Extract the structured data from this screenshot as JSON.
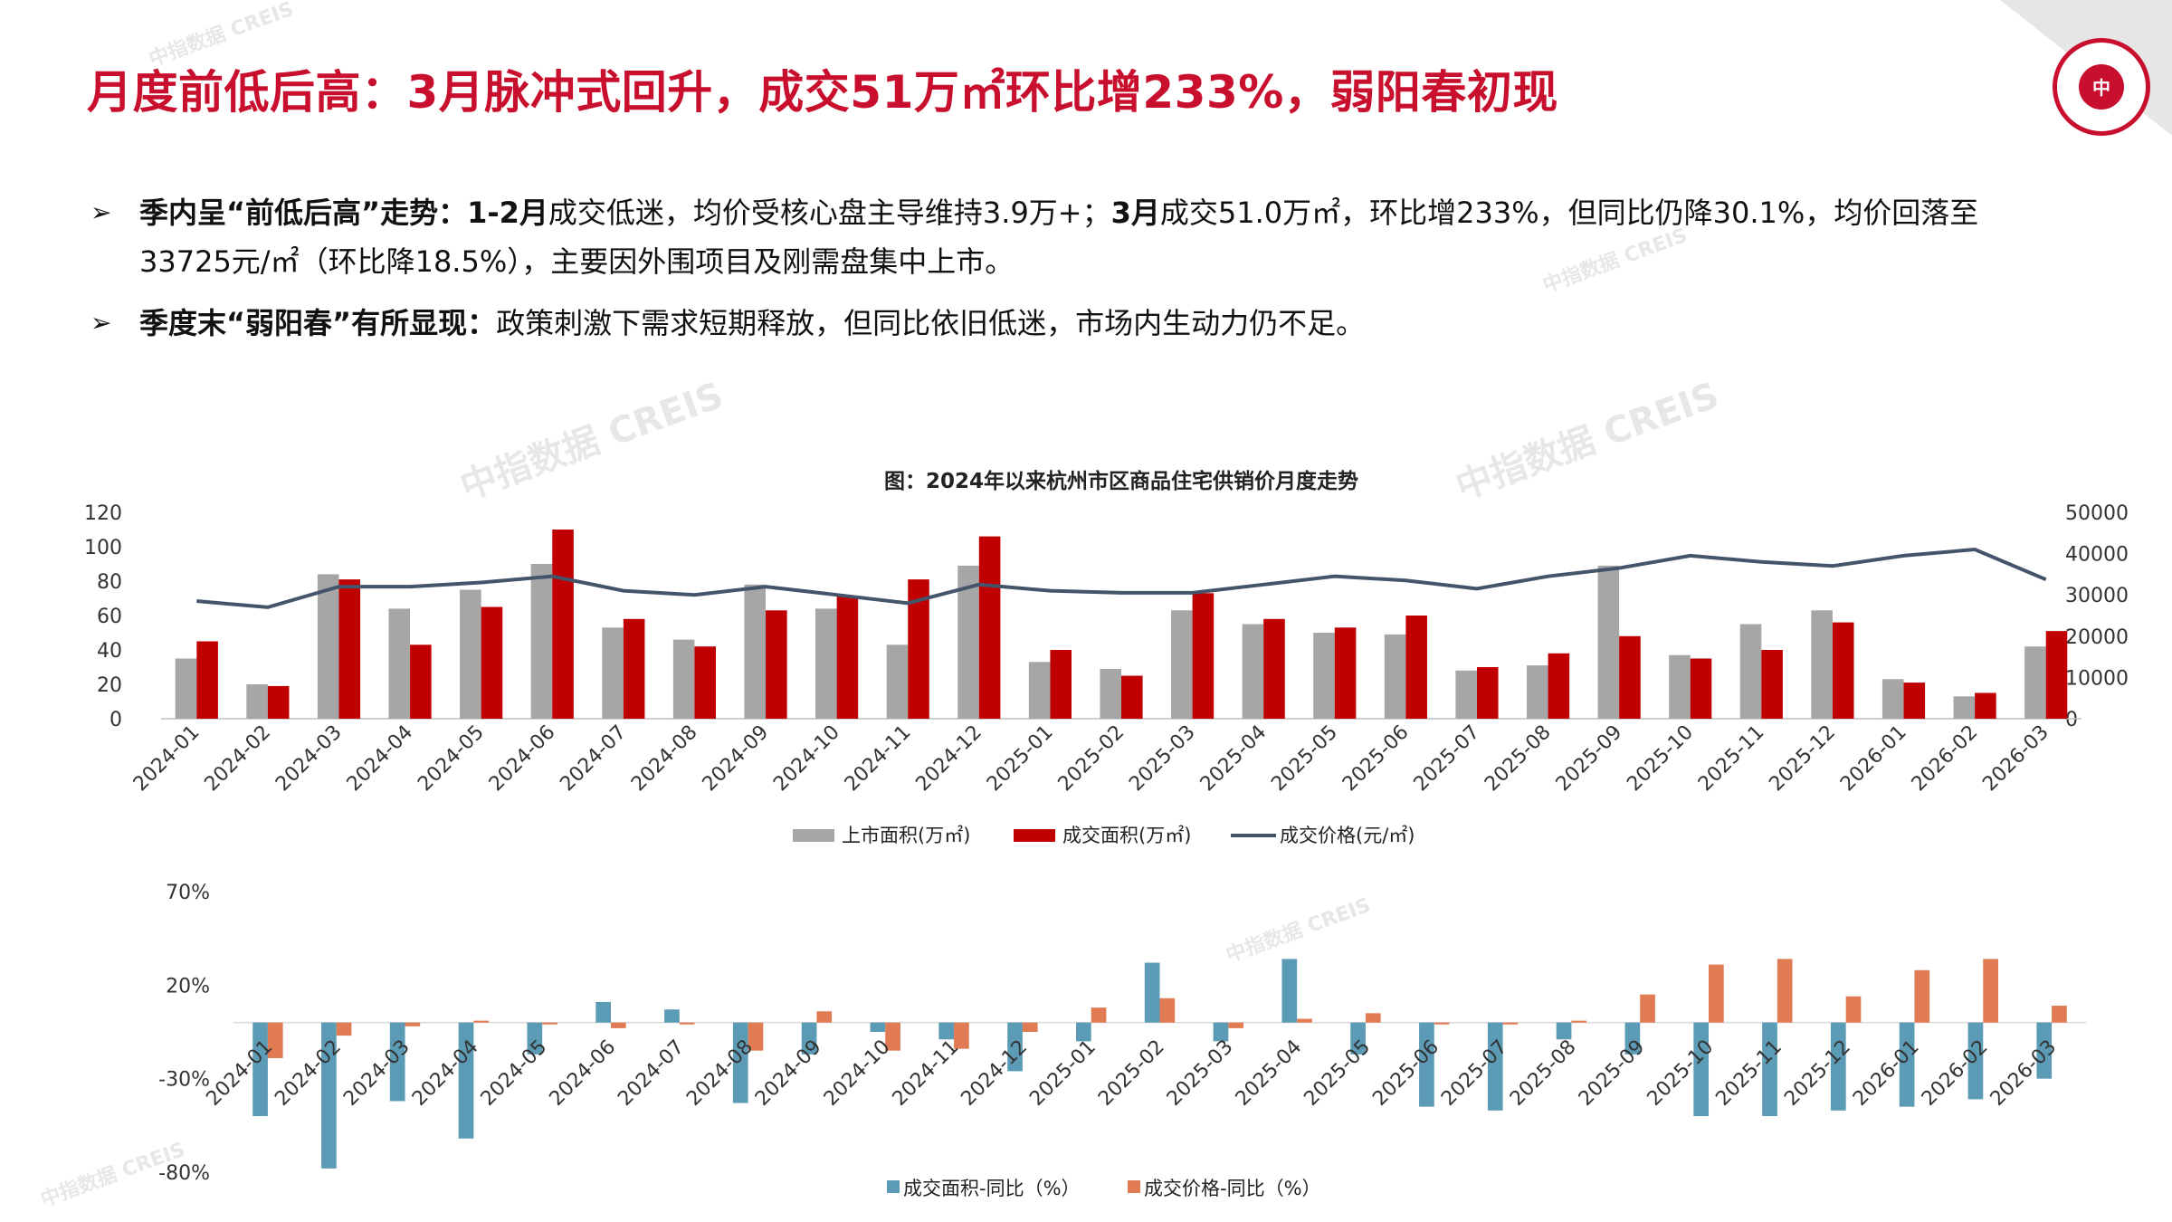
{
  "page": {
    "title": "月度前低后高：3月脉冲式回升，成交51万㎡环比增233%，弱阳春初现",
    "bullets": [
      {
        "marker": "➢",
        "lead": "季内呈“前低后高”走势：",
        "segments": [
          {
            "text": "1-2月",
            "bold": true
          },
          {
            "text": "成交低迷，均价受核心盘主导维持3.9万+；",
            "bold": false
          },
          {
            "text": "3月",
            "bold": true
          },
          {
            "text": "成交51.0万㎡，环比增233%，但同比仍降30.1%，均价回落至33725元/㎡（环比降18.5%），主要因外围项目及刚需盘集中上市。",
            "bold": false
          }
        ]
      },
      {
        "marker": "➢",
        "lead": "季度末“弱阳春”有所显现：",
        "segments": [
          {
            "text": "政策刺激下需求短期释放，但同比依旧低迷，市场内生动力仍不足。",
            "bold": false
          }
        ]
      }
    ],
    "watermark_text": "中指数据 CREIS",
    "colors": {
      "title_red": "#c8102e",
      "bar_gray": "#a6a6a6",
      "bar_red": "#c00000",
      "line_navy": "#44546a",
      "yoy_blue": "#5b9bb5",
      "yoy_orange": "#e07b53"
    }
  },
  "chart_data": [
    {
      "type": "bar",
      "title": "图：2024年以来杭州市区商品住宅供销价月度走势",
      "categories": [
        "2024-01",
        "2024-02",
        "2024-03",
        "2024-04",
        "2024-05",
        "2024-06",
        "2024-07",
        "2024-08",
        "2024-09",
        "2024-10",
        "2024-11",
        "2024-12",
        "2025-01",
        "2025-02",
        "2025-03",
        "2025-04",
        "2025-05",
        "2025-06",
        "2025-07",
        "2025-08",
        "2025-09",
        "2025-10",
        "2025-11",
        "2025-12",
        "2026-01",
        "2026-02",
        "2026-03"
      ],
      "series": [
        {
          "name": "上市面积(万㎡)",
          "type": "bar",
          "axis": "left",
          "color": "#a6a6a6",
          "values": [
            35,
            20,
            84,
            64,
            75,
            90,
            53,
            46,
            78,
            64,
            43,
            89,
            33,
            29,
            63,
            55,
            50,
            49,
            28,
            31,
            89,
            37,
            55,
            63,
            23,
            13,
            42
          ]
        },
        {
          "name": "成交面积(万㎡)",
          "type": "bar",
          "axis": "left",
          "color": "#c00000",
          "values": [
            45,
            19,
            81,
            43,
            65,
            110,
            58,
            42,
            63,
            71,
            81,
            106,
            40,
            25,
            73,
            58,
            53,
            60,
            30,
            38,
            48,
            35,
            40,
            56,
            21,
            15,
            51
          ]
        },
        {
          "name": "成交价格(元/㎡)",
          "type": "line",
          "axis": "right",
          "color": "#44546a",
          "values": [
            28500,
            27000,
            32000,
            32000,
            33000,
            34500,
            31000,
            30000,
            32000,
            30000,
            28000,
            32500,
            31000,
            30500,
            30500,
            32500,
            34500,
            33500,
            31500,
            34500,
            36500,
            39500,
            38000,
            37000,
            39500,
            41000,
            33725
          ]
        }
      ],
      "yleft_ticks": [
        "0",
        "20",
        "40",
        "60",
        "80",
        "100",
        "120"
      ],
      "yright_ticks": [
        "0",
        "10000",
        "20000",
        "30000",
        "40000",
        "50000"
      ],
      "ylim_left": [
        0,
        120
      ],
      "ylim_right": [
        0,
        50000
      ],
      "legend_position": "bottom"
    },
    {
      "type": "bar",
      "categories": [
        "2024-01",
        "2024-02",
        "2024-03",
        "2024-04",
        "2024-05",
        "2024-06",
        "2024-07",
        "2024-08",
        "2024-09",
        "2024-10",
        "2024-11",
        "2024-12",
        "2025-01",
        "2025-02",
        "2025-03",
        "2025-04",
        "2025-05",
        "2025-06",
        "2025-07",
        "2025-08",
        "2025-09",
        "2025-10",
        "2025-11",
        "2025-12",
        "2026-01",
        "2026-02",
        "2026-03"
      ],
      "series": [
        {
          "name": "成交面积-同比（%）",
          "color": "#5b9bb5",
          "values": [
            -50,
            -78,
            -42,
            -62,
            -17,
            11,
            7,
            -43,
            -17,
            -5,
            -9,
            -26,
            -10,
            32,
            -10,
            34,
            -17,
            -45,
            -47,
            -9,
            -17,
            -50,
            -50,
            -47,
            -45,
            -41,
            -30
          ]
        },
        {
          "name": "成交价格-同比（%）",
          "color": "#e07b53",
          "values": [
            -19,
            -7,
            -2,
            1,
            -1,
            -3,
            -1,
            -15,
            6,
            -15,
            -14,
            -5,
            8,
            13,
            -3,
            2,
            5,
            -1,
            -1,
            1,
            15,
            31,
            34,
            14,
            28,
            34,
            9
          ]
        }
      ],
      "y_ticks": [
        "70%",
        "20%",
        "-30%",
        "-80%"
      ],
      "ylim": [
        -80,
        70
      ],
      "legend_position": "bottom"
    }
  ]
}
